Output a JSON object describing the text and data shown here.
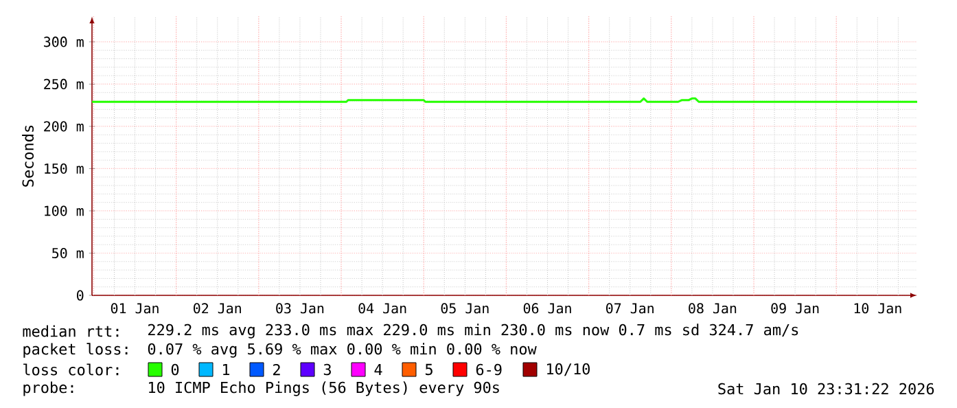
{
  "chart_data": {
    "type": "line",
    "ylabel": "Seconds",
    "xlim": [
      "2025-12-31T23:31",
      "2026-01-10T23:31"
    ],
    "xticks": [
      {
        "value": "2026-01-01T12:00",
        "label": "01 Jan"
      },
      {
        "value": "2026-01-02T12:00",
        "label": "02 Jan"
      },
      {
        "value": "2026-01-03T12:00",
        "label": "03 Jan"
      },
      {
        "value": "2026-01-04T12:00",
        "label": "04 Jan"
      },
      {
        "value": "2026-01-05T12:00",
        "label": "05 Jan"
      },
      {
        "value": "2026-01-06T12:00",
        "label": "06 Jan"
      },
      {
        "value": "2026-01-07T12:00",
        "label": "07 Jan"
      },
      {
        "value": "2026-01-08T12:00",
        "label": "08 Jan"
      },
      {
        "value": "2026-01-09T12:00",
        "label": "09 Jan"
      },
      {
        "value": "2026-01-10T12:00",
        "label": "10 Jan"
      }
    ],
    "ylim": [
      0,
      330
    ],
    "yticks": [
      0,
      {
        "value": 50,
        "label": "50 m"
      },
      {
        "value": 100,
        "label": "100 m"
      },
      {
        "value": 150,
        "label": "150 m"
      },
      {
        "value": 200,
        "label": "200 m"
      },
      {
        "value": 250,
        "label": "250 m"
      },
      {
        "value": 300,
        "label": "300 m"
      }
    ],
    "grid": true,
    "legend": "bottom",
    "series": [
      {
        "name": "0",
        "color": "#26ff00",
        "x": [
          "2025-12-31T23:31",
          "2026-01-04T01:30",
          "2026-01-04T02:00",
          "2026-01-05T00:00",
          "2026-01-05T00:30",
          "2026-01-07T15:00",
          "2026-01-07T16:00",
          "2026-01-07T17:00",
          "2026-01-08T02:00",
          "2026-01-08T03:00",
          "2026-01-08T05:00",
          "2026-01-08T06:00",
          "2026-01-08T07:00",
          "2026-01-08T08:00",
          "2026-01-10T23:31"
        ],
        "values": [
          229,
          229,
          231,
          231,
          229,
          229,
          233,
          229,
          229,
          231,
          231,
          233,
          233,
          229,
          229
        ]
      },
      {
        "name": "1",
        "color": "#00b8ff"
      },
      {
        "name": "2",
        "color": "#0059ff"
      },
      {
        "name": "3",
        "color": "#5e00ff"
      },
      {
        "name": "4",
        "color": "#ff00ff"
      },
      {
        "name": "5",
        "color": "#ff5e00"
      },
      {
        "name": "6-9",
        "color": "#ff0000"
      },
      {
        "name": "10/10",
        "color": "#a10000"
      }
    ],
    "legend_title": "loss color:",
    "annotations": [
      "median rtt:",
      "229.2 ms avg  233.0 ms max  229.0 ms min  230.0 ms now  0.7 ms sd  324.7   am/s",
      "packet loss:",
      "0.07 % avg  5.69 % max  0.00 % min  0.00 % now",
      "probe:",
      "10 ICMP Echo Pings (56 Bytes) every 90s",
      "Sat Jan 10 23:31:22 2026"
    ]
  }
}
